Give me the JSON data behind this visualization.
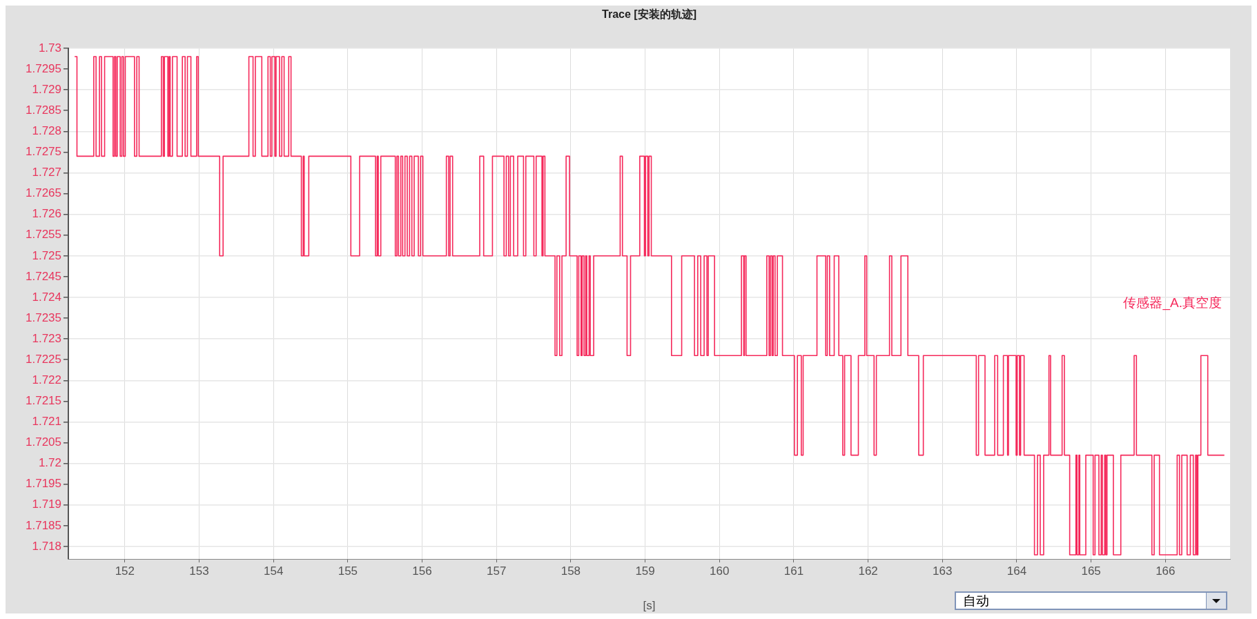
{
  "chart_data": {
    "type": "step",
    "title": "Trace [安装的轨迹]",
    "xlabel": "[s]",
    "annotations": [
      "自动"
    ],
    "xlim": [
      151.24,
      166.87
    ],
    "xticks": [
      152,
      153,
      154,
      155,
      156,
      157,
      158,
      159,
      160,
      161,
      162,
      163,
      164,
      165,
      166
    ],
    "ylim": [
      1.7177,
      1.73
    ],
    "yticks": [
      1.718,
      1.7185,
      1.719,
      1.7195,
      1.72,
      1.7205,
      1.721,
      1.7215,
      1.722,
      1.7225,
      1.723,
      1.7235,
      1.724,
      1.7245,
      1.725,
      1.7255,
      1.726,
      1.7265,
      1.727,
      1.7275,
      1.728,
      1.7285,
      1.729,
      1.7295,
      1.73
    ],
    "grid": true,
    "legend": "right",
    "marker": "none",
    "line_style": "solid",
    "series": [
      {
        "name": "传感器_A.真空度",
        "color": "#f5285a",
        "x": [
          151.325,
          151.356,
          151.582,
          151.613,
          151.659,
          151.687,
          151.728,
          151.842,
          151.861,
          151.879,
          151.898,
          151.938,
          151.96,
          151.981,
          152.006,
          152.13,
          152.161,
          152.192,
          152.492,
          152.517,
          152.533,
          152.579,
          152.595,
          152.61,
          152.641,
          152.703,
          152.774,
          152.811,
          152.842,
          152.889,
          152.966,
          152.988,
          153.276,
          153.322,
          153.669,
          153.725,
          153.756,
          153.843,
          153.926,
          153.957,
          153.979,
          154.019,
          154.035,
          154.081,
          154.112,
          154.143,
          154.205,
          154.236,
          154.375,
          154.4,
          154.413,
          154.475,
          155.041,
          155.159,
          155.373,
          155.395,
          155.41,
          155.444,
          155.639,
          155.661,
          155.682,
          155.713,
          155.738,
          155.769,
          155.8,
          155.831,
          155.862,
          155.893,
          155.949,
          155.979,
          156.01,
          156.326,
          156.357,
          156.376,
          156.41,
          156.775,
          156.828,
          156.946,
          157.101,
          157.132,
          157.163,
          157.187,
          157.231,
          157.286,
          157.364,
          157.395,
          157.503,
          157.534,
          157.612,
          157.627,
          157.652,
          157.788,
          157.813,
          157.85,
          157.881,
          157.937,
          157.983,
          158.085,
          158.107,
          158.138,
          158.153,
          158.178,
          158.2,
          158.215,
          158.246,
          158.262,
          158.308,
          158.664,
          158.695,
          158.757,
          158.804,
          158.928,
          158.99,
          159.005,
          159.036,
          159.052,
          159.083,
          159.355,
          159.492,
          159.664,
          159.708,
          159.748,
          159.794,
          159.832,
          159.85,
          159.934,
          160.296,
          160.327,
          160.337,
          160.358,
          160.637,
          160.668,
          160.686,
          160.708,
          160.724,
          160.748,
          160.779,
          160.848,
          161.009,
          161.049,
          161.101,
          161.126,
          161.312,
          161.43,
          161.451,
          161.482,
          161.544,
          161.606,
          161.659,
          161.684,
          161.77,
          161.869,
          161.956,
          161.981,
          162.08,
          162.111,
          162.288,
          162.319,
          162.442,
          162.535,
          162.681,
          162.743,
          163.455,
          163.486,
          163.573,
          163.703,
          163.743,
          163.82,
          163.876,
          163.888,
          163.991,
          164.006,
          164.037,
          164.052,
          164.099,
          164.238,
          164.279,
          164.316,
          164.362,
          164.433,
          164.455,
          164.61,
          164.641,
          164.712,
          164.796,
          164.811,
          164.836,
          164.848,
          164.929,
          165.028,
          165.053,
          165.105,
          165.136,
          165.152,
          165.183,
          165.198,
          165.214,
          165.3,
          165.4,
          165.579,
          165.61,
          165.818,
          165.849,
          165.92,
          166.158,
          166.189,
          166.22,
          166.292,
          166.335,
          166.375,
          166.406,
          166.422,
          166.437,
          166.477,
          166.57,
          166.793
        ],
        "values": [
          1.7298,
          1.7274,
          1.7298,
          1.7274,
          1.7298,
          1.7274,
          1.7298,
          1.7274,
          1.7298,
          1.7274,
          1.7298,
          1.7274,
          1.7298,
          1.7274,
          1.7298,
          1.7274,
          1.7298,
          1.7274,
          1.7298,
          1.7274,
          1.7298,
          1.7274,
          1.7298,
          1.7274,
          1.7298,
          1.7274,
          1.7298,
          1.7274,
          1.7298,
          1.7274,
          1.7298,
          1.7274,
          1.725,
          1.7274,
          1.7298,
          1.7274,
          1.7298,
          1.7274,
          1.7298,
          1.7274,
          1.7298,
          1.7274,
          1.7298,
          1.7274,
          1.7298,
          1.7274,
          1.7298,
          1.7274,
          1.725,
          1.7274,
          1.725,
          1.7274,
          1.725,
          1.7274,
          1.725,
          1.7274,
          1.725,
          1.7274,
          1.725,
          1.7274,
          1.725,
          1.7274,
          1.725,
          1.7274,
          1.725,
          1.7274,
          1.725,
          1.7274,
          1.725,
          1.7274,
          1.725,
          1.7274,
          1.725,
          1.7274,
          1.725,
          1.7274,
          1.725,
          1.7274,
          1.725,
          1.7274,
          1.725,
          1.7274,
          1.725,
          1.7274,
          1.725,
          1.7274,
          1.725,
          1.7274,
          1.725,
          1.7274,
          1.725,
          1.7226,
          1.725,
          1.7226,
          1.725,
          1.7274,
          1.725,
          1.7226,
          1.725,
          1.7226,
          1.725,
          1.7226,
          1.725,
          1.7226,
          1.725,
          1.7226,
          1.725,
          1.7274,
          1.725,
          1.7226,
          1.725,
          1.7274,
          1.725,
          1.7274,
          1.725,
          1.7274,
          1.725,
          1.7226,
          1.725,
          1.7226,
          1.725,
          1.7226,
          1.725,
          1.7226,
          1.725,
          1.7226,
          1.725,
          1.7226,
          1.725,
          1.7226,
          1.725,
          1.7226,
          1.725,
          1.7226,
          1.725,
          1.7226,
          1.725,
          1.7226,
          1.7202,
          1.7226,
          1.7202,
          1.7226,
          1.725,
          1.7226,
          1.725,
          1.7226,
          1.725,
          1.7226,
          1.7202,
          1.7226,
          1.7202,
          1.7226,
          1.725,
          1.7226,
          1.7202,
          1.7226,
          1.725,
          1.7226,
          1.725,
          1.7226,
          1.7202,
          1.7226,
          1.7202,
          1.7226,
          1.7202,
          1.7226,
          1.7202,
          1.7226,
          1.7202,
          1.7226,
          1.7202,
          1.7226,
          1.7202,
          1.7226,
          1.7202,
          1.7178,
          1.7202,
          1.7178,
          1.7202,
          1.7226,
          1.7202,
          1.7226,
          1.7202,
          1.7178,
          1.7202,
          1.7178,
          1.7202,
          1.7178,
          1.7202,
          1.7178,
          1.7202,
          1.7178,
          1.7202,
          1.7178,
          1.7202,
          1.7178,
          1.7202,
          1.7178,
          1.7202,
          1.7226,
          1.7202,
          1.7178,
          1.7202,
          1.7178,
          1.7202,
          1.7178,
          1.7202,
          1.7178,
          1.7202,
          1.7178,
          1.7202,
          1.7178,
          1.7202,
          1.7226,
          1.7202,
          1.7202
        ]
      }
    ]
  }
}
